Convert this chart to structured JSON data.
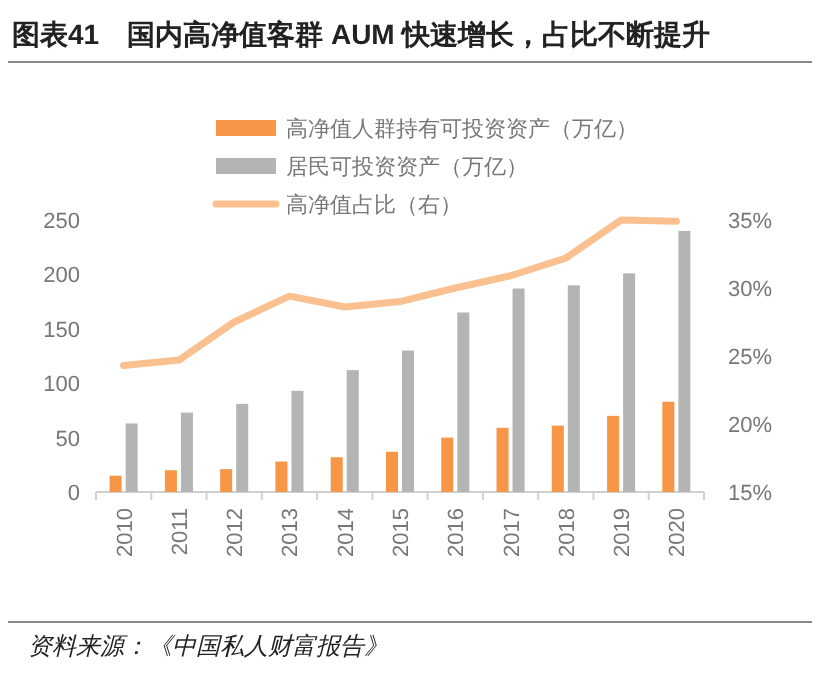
{
  "chart_data": {
    "type": "bar",
    "title": "图表41　国内高净值客群 AUM 快速增长，占比不断提升",
    "categories": [
      "2010",
      "2011",
      "2012",
      "2013",
      "2014",
      "2015",
      "2016",
      "2017",
      "2018",
      "2019",
      "2020"
    ],
    "series": [
      {
        "name": "高净值人群持有可投资资产（万亿）",
        "color": "#f79646",
        "values": [
          15,
          20,
          21,
          28,
          32,
          37,
          50,
          59,
          61,
          70,
          83
        ]
      },
      {
        "name": "居民可投资资产（万亿）",
        "color": "#b4b4b4",
        "values": [
          63,
          73,
          81,
          93,
          112,
          130,
          165,
          187,
          190,
          201,
          240
        ]
      },
      {
        "name": "高净值占比（右）",
        "type": "line",
        "axis": "y2",
        "color": "#fbc08f",
        "values": [
          24.3,
          24.7,
          27.5,
          29.4,
          28.6,
          29.0,
          30.0,
          30.9,
          32.2,
          35.0,
          34.9
        ]
      }
    ],
    "ylim": [
      0,
      250
    ],
    "yticks": [
      0,
      50,
      100,
      150,
      200,
      250
    ],
    "y2lim": [
      15,
      35
    ],
    "y2ticks": [
      {
        "value": 15,
        "label": "15%"
      },
      {
        "value": 20,
        "label": "20%"
      },
      {
        "value": 25,
        "label": "25%"
      },
      {
        "value": 30,
        "label": "30%"
      },
      {
        "value": 35,
        "label": "35%"
      }
    ],
    "legend": "top",
    "annotations": [
      "资料来源：《中国私人财富报告》"
    ]
  }
}
